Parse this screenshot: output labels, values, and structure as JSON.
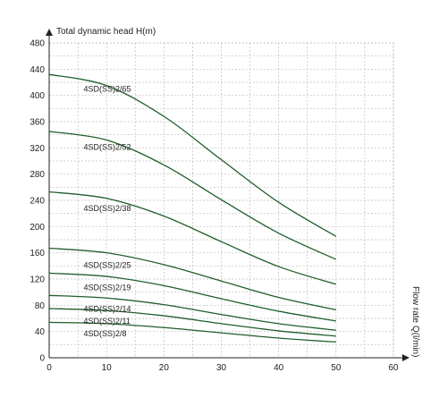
{
  "chart_data": {
    "type": "line",
    "ylabel": "Total dynamic head H(m)",
    "xlabel": "Flow rate Q(l/min)",
    "xlim": [
      0,
      60
    ],
    "ylim": [
      0,
      480
    ],
    "x_ticks": [
      "0",
      "10",
      "20",
      "30",
      "40",
      "50",
      "60"
    ],
    "y_ticks": [
      "0",
      "40",
      "80",
      "120",
      "160",
      "200",
      "240",
      "280",
      "320",
      "360",
      "400",
      "440",
      "480"
    ],
    "grid": "on",
    "line_color": "#1f5e2a",
    "series": [
      {
        "name": "4SD(SS)2/65",
        "x": [
          0,
          10,
          20,
          30,
          40,
          50
        ],
        "y": [
          432,
          415,
          368,
          302,
          237,
          185
        ]
      },
      {
        "name": "4SD(SS)2/52",
        "x": [
          0,
          10,
          20,
          30,
          40,
          50
        ],
        "y": [
          345,
          332,
          294,
          241,
          190,
          150
        ]
      },
      {
        "name": "4SD(SS)2/38",
        "x": [
          0,
          10,
          20,
          30,
          40,
          50
        ],
        "y": [
          253,
          243,
          216,
          177,
          139,
          112
        ]
      },
      {
        "name": "4SD(SS)2/25",
        "x": [
          0,
          10,
          20,
          30,
          40,
          50
        ],
        "y": [
          167,
          160,
          142,
          117,
          92,
          73
        ]
      },
      {
        "name": "4SD(SS)2/19",
        "x": [
          0,
          10,
          20,
          30,
          40,
          50
        ],
        "y": [
          129,
          124,
          110,
          90,
          71,
          56
        ]
      },
      {
        "name": "4SD(SS)2/14",
        "x": [
          0,
          10,
          20,
          30,
          40,
          50
        ],
        "y": [
          95,
          91,
          81,
          66,
          52,
          42
        ]
      },
      {
        "name": "4SD(SS)2/11",
        "x": [
          0,
          10,
          20,
          30,
          40,
          50
        ],
        "y": [
          75,
          72,
          64,
          52,
          41,
          33
        ]
      },
      {
        "name": "4SD(SS)2/8",
        "x": [
          0,
          10,
          20,
          30,
          40,
          50
        ],
        "y": [
          54,
          52,
          46,
          38,
          30,
          24
        ]
      }
    ],
    "series_labels": [
      {
        "text": "4SD(SS)2/65",
        "x": 6,
        "y": 410
      },
      {
        "text": "4SD(SS)2/52",
        "x": 6,
        "y": 321
      },
      {
        "text": "4SD(SS)2/38",
        "x": 6,
        "y": 228
      },
      {
        "text": "4SD(SS)2/25",
        "x": 6,
        "y": 141
      },
      {
        "text": "4SD(SS)2/19",
        "x": 6,
        "y": 107
      },
      {
        "text": "4SD(SS)2/14",
        "x": 6,
        "y": 74
      },
      {
        "text": "4SD(SS)2/11",
        "x": 6,
        "y": 56
      },
      {
        "text": "4SD(SS)2/8",
        "x": 6,
        "y": 37
      }
    ]
  }
}
